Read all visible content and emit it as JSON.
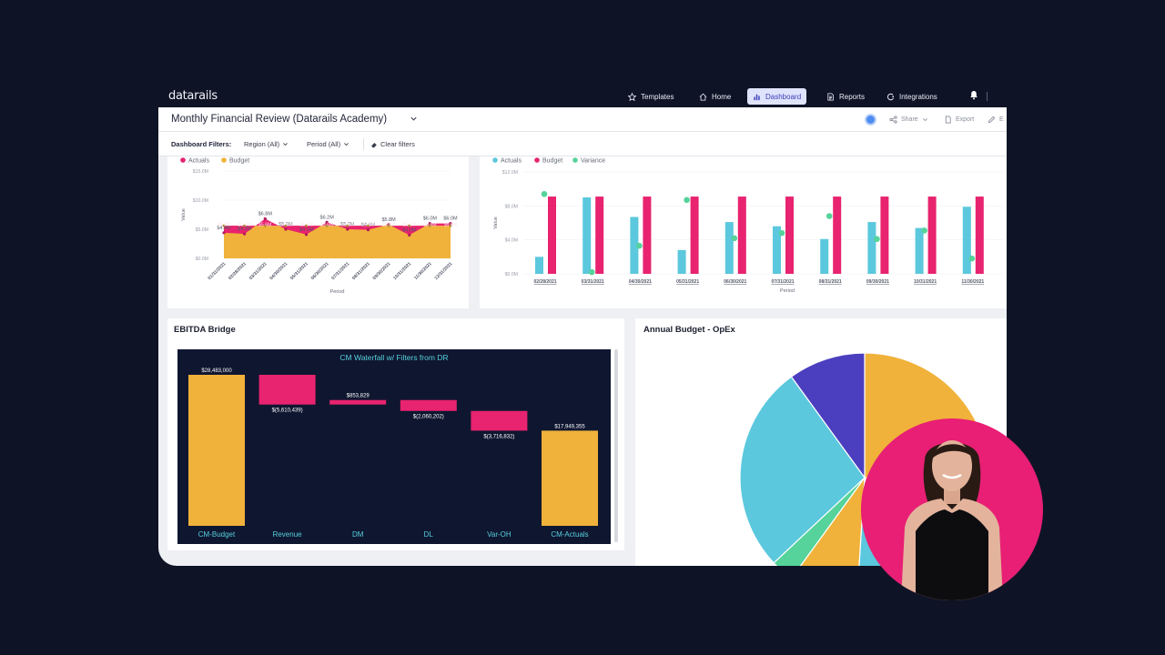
{
  "nav": {
    "logo": "datarails",
    "items": [
      {
        "label": "Templates",
        "icon": "star-icon"
      },
      {
        "label": "Home",
        "icon": "home-icon"
      },
      {
        "label": "Dashboard",
        "icon": "bar-chart-icon",
        "active": true
      },
      {
        "label": "Reports",
        "icon": "document-icon"
      },
      {
        "label": "Integrations",
        "icon": "integrations-icon"
      }
    ]
  },
  "header": {
    "title": "Monthly Financial Review (Datarails Academy)",
    "actions": {
      "share": "Share",
      "export": "Export",
      "edit": "E"
    }
  },
  "filters": {
    "label": "Dashboard Filters:",
    "region": "Region (All)",
    "period": "Period (All)",
    "clear": "Clear filters"
  },
  "colors": {
    "pink": "#e8236f",
    "orange": "#f0b23a",
    "cyan": "#5bc8dd",
    "green": "#55d39a",
    "navy": "#0f1630",
    "indigo": "#4c3fbf"
  },
  "chart_data": [
    {
      "type": "area",
      "legend": [
        "Actuals",
        "Budget"
      ],
      "ylabel": "Value",
      "xlabel": "Period",
      "yticks": [
        "$15.0M",
        "$10.0M",
        "$5.0M",
        "$0.0M"
      ],
      "ylim": [
        0,
        15
      ],
      "x": [
        "01/31/2021",
        "02/28/2021",
        "03/31/2021",
        "04/30/2021",
        "05/31/2021",
        "06/30/2021",
        "07/31/2021",
        "08/31/2021",
        "09/30/2021",
        "10/31/2021",
        "11/30/2021",
        "12/31/2021"
      ],
      "series": [
        {
          "name": "Actuals",
          "values": [
            4.4,
            4.2,
            6.8,
            5.0,
            4.1,
            6.2,
            5.0,
            4.9,
            5.8,
            4.0,
            6.0,
            6.0
          ],
          "labels": [
            "$4.4M",
            "$4.2M",
            "$6.8M",
            "$5.0M",
            "$4.1M",
            "$6.2M",
            "$5.0M",
            "$4.9M",
            "$5.8M",
            "$4.0M",
            "$6.0M",
            "$6.0M"
          ]
        },
        {
          "name": "Budget",
          "values": [
            5.6,
            5.6,
            5.6,
            5.6,
            5.6,
            5.6,
            5.6,
            5.6,
            5.6,
            5.6,
            5.6,
            5.6
          ],
          "labels": [
            "$5.6M",
            "$5.6M",
            "$5.6M",
            "$5.6M",
            "$5.6M",
            "$5.6M",
            "$5.6M",
            "$5.6M",
            "$5.6M",
            "$5.6M",
            "$5.6M",
            "$5.6M"
          ]
        }
      ]
    },
    {
      "type": "bar",
      "legend": [
        "Actuals",
        "Budget",
        "Variance"
      ],
      "ylabel": "Value",
      "xlabel": "Period",
      "yticks": [
        "$12.0M",
        "$8.0M",
        "$4.0M",
        "$0.0M"
      ],
      "ylim": [
        0,
        12
      ],
      "categories": [
        "02/28/2021",
        "03/31/2021",
        "04/30/2021",
        "05/31/2021",
        "06/30/2021",
        "07/31/2021",
        "08/31/2021",
        "09/30/2021",
        "10/31/2021",
        "11/30/2021"
      ],
      "series": [
        {
          "name": "Actuals",
          "values": [
            2.0,
            9.0,
            6.7,
            2.8,
            6.1,
            5.6,
            4.1,
            6.1,
            5.4,
            7.9
          ]
        },
        {
          "name": "Budget",
          "values": [
            9.1,
            9.1,
            9.1,
            9.1,
            9.1,
            9.1,
            9.1,
            9.1,
            9.1,
            9.1
          ]
        },
        {
          "name": "Variance",
          "values": [
            9.4,
            0.2,
            3.3,
            8.7,
            4.2,
            4.8,
            6.8,
            4.1,
            5.1,
            1.8
          ]
        }
      ]
    },
    {
      "type": "bar",
      "subtype": "waterfall",
      "title": "CM Waterfall w/ Filters from DR",
      "categories": [
        "CM-Budget",
        "Revenue",
        "DM",
        "DL",
        "Var-OH",
        "CM-Actuals"
      ],
      "values": [
        28483000,
        -5610439,
        853829,
        -2060202,
        -3716832,
        17949355
      ],
      "labels": [
        "$28,483,000",
        "$(5,610,439)",
        "$853,829",
        "$(2,060,202)",
        "$(3,716,832)",
        "$17,949,355"
      ]
    },
    {
      "type": "pie",
      "colors": [
        "#f0b23a",
        "#e8236f",
        "#2e9fb0",
        "#5bc8dd",
        "#f0b23a",
        "#55d39a",
        "#5bc8dd",
        "#4c3fbf"
      ],
      "values": [
        28,
        14,
        4,
        5,
        9,
        3,
        27,
        10
      ]
    }
  ],
  "panels": {
    "ebitda_title": "EBITDA Bridge",
    "opex_title": "Annual Budget - OpEx"
  }
}
